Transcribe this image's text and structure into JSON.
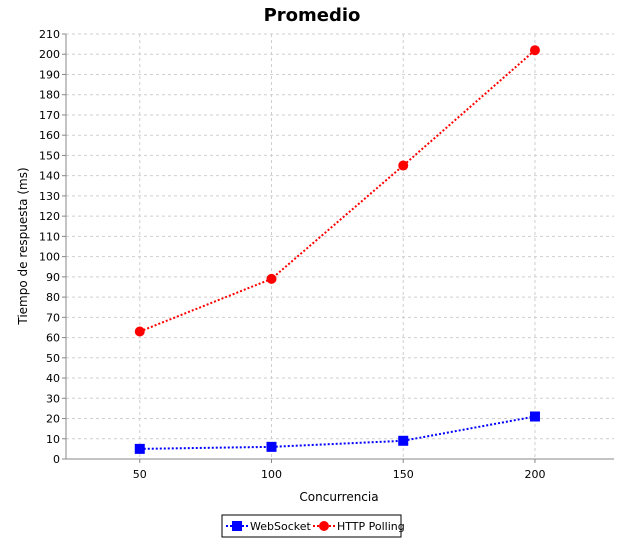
{
  "chart_data": {
    "type": "line",
    "title": "Promedio",
    "xlabel": "Concurrencia",
    "ylabel": "Tiempo de respuesta (ms)",
    "x": [
      50,
      100,
      150,
      200
    ],
    "xlim": [
      22,
      230
    ],
    "ylim": [
      0,
      210
    ],
    "xticks": [
      "50",
      "100",
      "150",
      "200"
    ],
    "yticks": [
      "0",
      "10",
      "20",
      "30",
      "40",
      "50",
      "60",
      "70",
      "80",
      "90",
      "100",
      "110",
      "120",
      "130",
      "140",
      "150",
      "160",
      "170",
      "180",
      "190",
      "200",
      "210"
    ],
    "grid": true,
    "legend_position": "bottom-center",
    "series": [
      {
        "name": "WebSocket",
        "values": [
          5,
          6,
          9,
          21
        ],
        "color": "#0000ff",
        "marker": "square"
      },
      {
        "name": "HTTP Polling",
        "values": [
          63,
          89,
          145,
          202
        ],
        "color": "#ff0000",
        "marker": "circle"
      }
    ]
  }
}
